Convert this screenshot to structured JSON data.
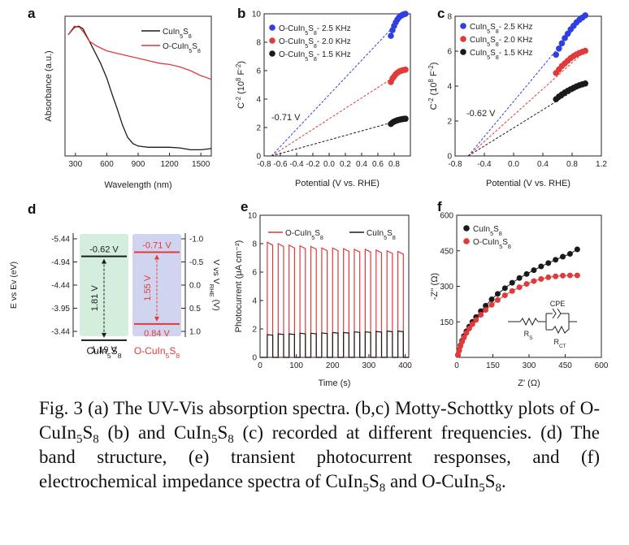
{
  "caption": {
    "p1": "Fig. 3 (a) The UV-Vis absorption spectra. (b,c) Motty-Schottky plots of O-CuIn",
    "p2": "S",
    "p3": " (b) and CuIn",
    "p4": "S",
    "p5": " (c) recorded at different frequencies. (d) The band structure, (e) transient photocurrent responses, and (f) electrochemical impedance spectra of CuIn",
    "p6": "S",
    "p7": " and O-CuIn",
    "p8": "S",
    "p9": ".",
    "sub5": "5",
    "sub8": "8"
  },
  "colors": {
    "red": "#e03a3a",
    "black": "#1a1a1a",
    "blue": "#2f3fe0",
    "green_box": "#d4eedd",
    "purple_box": "#d0d4ee"
  },
  "chart_data": [
    {
      "panel": "a",
      "type": "line",
      "xlabel": "Wavelength (nm)",
      "ylabel": "Absorbance (a.u.)",
      "xlim": [
        200,
        1600
      ],
      "xticks": [
        "300",
        "600",
        "900",
        "1200",
        "1500"
      ],
      "series": [
        {
          "name": "CuIn5S8",
          "color": "#1a1a1a",
          "x": [
            230,
            290,
            330,
            370,
            420,
            480,
            540,
            600,
            650,
            700,
            750,
            800,
            850,
            900,
            950,
            1000,
            1100,
            1200,
            1300,
            1400,
            1500,
            1600
          ],
          "y": [
            0.93,
            0.99,
            1.0,
            0.98,
            0.9,
            0.8,
            0.7,
            0.58,
            0.45,
            0.33,
            0.2,
            0.1,
            0.05,
            0.03,
            0.025,
            0.02,
            0.02,
            0.02,
            0.015,
            0.0,
            0.0,
            0.01
          ]
        },
        {
          "name": "O-CuIn5S8",
          "color": "#e03a3a",
          "x": [
            230,
            290,
            340,
            380,
            430,
            500,
            600,
            700,
            800,
            900,
            1000,
            1100,
            1200,
            1300,
            1400,
            1500,
            1600
          ],
          "y": [
            0.93,
            1.0,
            0.99,
            0.95,
            0.88,
            0.84,
            0.8,
            0.78,
            0.76,
            0.74,
            0.72,
            0.7,
            0.69,
            0.67,
            0.64,
            0.6,
            0.57
          ]
        }
      ]
    },
    {
      "panel": "b",
      "type": "scatter",
      "xlabel": "Potential (V vs. RHE)",
      "ylabel": "C⁻² (10⁸ F⁻²)",
      "xlim": [
        -0.8,
        1.0
      ],
      "ylim": [
        0,
        10
      ],
      "xticks": [
        "-0.8",
        "-0.6",
        "-0.4",
        "-0.2",
        "0.0",
        "0.2",
        "0.4",
        "0.6",
        "0.8"
      ],
      "yticks": [
        "0",
        "2",
        "4",
        "6",
        "8",
        "10"
      ],
      "annotation": "-0.71 V",
      "intercept": -0.71,
      "series": [
        {
          "name": "O-CuIn5S8- 2.5 KHz",
          "color": "#2f3fe0",
          "x": [
            0.76,
            0.78,
            0.8,
            0.82,
            0.84,
            0.86,
            0.88,
            0.9,
            0.92,
            0.94
          ],
          "y": [
            8.45,
            8.85,
            9.15,
            9.4,
            9.6,
            9.75,
            9.85,
            9.92,
            9.97,
            10.0
          ]
        },
        {
          "name": "O-CuIn5S8- 2.0 KHz",
          "color": "#e03a3a",
          "x": [
            0.76,
            0.78,
            0.8,
            0.82,
            0.84,
            0.86,
            0.88,
            0.9,
            0.92,
            0.94
          ],
          "y": [
            5.2,
            5.45,
            5.6,
            5.75,
            5.85,
            5.93,
            5.98,
            6.02,
            6.05,
            6.07
          ]
        },
        {
          "name": "O-CuIn5S8- 1.5 KHz",
          "color": "#1a1a1a",
          "x": [
            0.76,
            0.78,
            0.8,
            0.82,
            0.84,
            0.86,
            0.88,
            0.9,
            0.92,
            0.94
          ],
          "y": [
            2.25,
            2.35,
            2.42,
            2.47,
            2.51,
            2.54,
            2.57,
            2.59,
            2.61,
            2.62
          ]
        }
      ]
    },
    {
      "panel": "c",
      "type": "scatter",
      "xlabel": "Potential (V vs. RHE)",
      "ylabel": "C⁻² (10⁸ F⁻²)",
      "xlim": [
        -0.8,
        1.2
      ],
      "ylim": [
        0,
        8
      ],
      "xticks": [
        "-0.8",
        "-0.4",
        "0.0",
        "0.4",
        "0.8",
        "1.2"
      ],
      "yticks": [
        "0",
        "2",
        "4",
        "6",
        "8"
      ],
      "annotation": "-0.62 V",
      "intercept": -0.62,
      "series": [
        {
          "name": "CuIn5S8- 2.5 KHz",
          "color": "#2f3fe0",
          "x": [
            0.58,
            0.62,
            0.66,
            0.7,
            0.74,
            0.78,
            0.82,
            0.86,
            0.9,
            0.94,
            0.98
          ],
          "y": [
            5.8,
            6.15,
            6.45,
            6.75,
            7.0,
            7.25,
            7.45,
            7.65,
            7.8,
            7.92,
            8.05
          ]
        },
        {
          "name": "CuIn5S8- 2.0 KHz",
          "color": "#e03a3a",
          "x": [
            0.58,
            0.62,
            0.66,
            0.7,
            0.74,
            0.78,
            0.82,
            0.86,
            0.9,
            0.94,
            0.98
          ],
          "y": [
            4.75,
            4.95,
            5.15,
            5.3,
            5.45,
            5.6,
            5.72,
            5.82,
            5.9,
            5.96,
            6.02
          ]
        },
        {
          "name": "CuIn5S8- 1.5 KHz",
          "color": "#1a1a1a",
          "x": [
            0.58,
            0.62,
            0.66,
            0.7,
            0.74,
            0.78,
            0.82,
            0.86,
            0.9,
            0.94,
            0.98
          ],
          "y": [
            3.25,
            3.4,
            3.52,
            3.63,
            3.73,
            3.82,
            3.9,
            3.98,
            4.05,
            4.1,
            4.15
          ]
        }
      ]
    },
    {
      "panel": "d",
      "type": "diagram",
      "left_axis_label": "E vs Ev (eV)",
      "right_axis_label": "V vs V",
      "right_axis_sub": "RHE",
      "right_axis_suffix": " (V)",
      "left_ticks": [
        "-5.44",
        "-4.94",
        "-4.44",
        "-3.95",
        "-3.44"
      ],
      "right_ticks": [
        "-1.0",
        "-0.5",
        "0.0",
        "0.5",
        "1.0"
      ],
      "bands": [
        {
          "cb": "-0.62 V",
          "vb": "1.19 V",
          "gap": "1.81 V",
          "cb_value": -0.62,
          "vb_value": 1.19,
          "name_main": "CuIn",
          "name_s": "S",
          "sub1": "5",
          "sub2": "8"
        },
        {
          "cb": "-0.71 V",
          "vb": "0.84 V",
          "gap": "1.55 V",
          "cb_value": -0.71,
          "vb_value": 0.84,
          "name_main": "O-CuIn",
          "name_s": "S",
          "sub1": "5",
          "sub2": "8"
        }
      ]
    },
    {
      "panel": "e",
      "type": "line",
      "xlabel": "Time (s)",
      "ylabel": "Photocurrent (μA cm⁻²)",
      "xlim": [
        0,
        410
      ],
      "ylim": [
        0,
        10
      ],
      "xticks": [
        "0",
        "100",
        "200",
        "300",
        "400"
      ],
      "yticks": [
        "0",
        "2",
        "4",
        "6",
        "8",
        "10"
      ],
      "pulses_on_start": [
        20,
        50,
        80,
        110,
        140,
        170,
        200,
        230,
        260,
        290,
        320,
        350,
        380
      ],
      "pulse_width": 15,
      "series": [
        {
          "name": "O-CuIn5S8",
          "color": "#e03a3a",
          "peaks": [
            8.1,
            8.0,
            7.9,
            7.85,
            7.8,
            7.7,
            7.7,
            7.65,
            7.6,
            7.6,
            7.55,
            7.5,
            7.45
          ]
        },
        {
          "name": "CuIn5S8",
          "color": "#1a1a1a",
          "peaks": [
            1.6,
            1.65,
            1.65,
            1.7,
            1.7,
            1.72,
            1.75,
            1.75,
            1.8,
            1.8,
            1.82,
            1.85,
            1.85
          ]
        }
      ]
    },
    {
      "panel": "f",
      "type": "scatter",
      "xlabel": "Z' (Ω)",
      "ylabel": "-Z'' (Ω)",
      "xlim": [
        0,
        600
      ],
      "ylim": [
        0,
        600
      ],
      "xticks": [
        "0",
        "150",
        "300",
        "450",
        "600"
      ],
      "yticks": [
        "150",
        "300",
        "450",
        "600"
      ],
      "circuit": {
        "r_s": "R",
        "r_s_sub": "S",
        "cpe": "CPE",
        "r_ct": "R",
        "r_ct_sub": "CT"
      },
      "series": [
        {
          "name": "CuIn5S8",
          "color": "#1a1a1a",
          "x": [
            5,
            10,
            15,
            22,
            30,
            40,
            52,
            65,
            80,
            100,
            120,
            145,
            170,
            200,
            230,
            260,
            290,
            320,
            350,
            380,
            410,
            440,
            470,
            500
          ],
          "y": [
            10,
            30,
            50,
            70,
            90,
            110,
            130,
            150,
            170,
            195,
            218,
            245,
            268,
            292,
            315,
            335,
            352,
            368,
            384,
            398,
            412,
            425,
            437,
            456
          ]
        },
        {
          "name": "O-CuIn5S8",
          "color": "#e03a3a",
          "x": [
            5,
            10,
            15,
            22,
            30,
            40,
            52,
            65,
            80,
            100,
            120,
            145,
            170,
            200,
            230,
            260,
            290,
            320,
            350,
            380,
            410,
            440,
            470,
            500
          ],
          "y": [
            10,
            28,
            47,
            66,
            84,
            103,
            122,
            140,
            158,
            180,
            200,
            222,
            242,
            262,
            280,
            296,
            310,
            322,
            331,
            338,
            342,
            345,
            346,
            346
          ]
        }
      ]
    }
  ],
  "panel_labels": [
    "a",
    "b",
    "c",
    "d",
    "e",
    "f"
  ],
  "legend": {
    "a": [
      {
        "main": "CuIn",
        "s1": "5",
        "mid": "S",
        "s2": "8",
        "tail": ""
      },
      {
        "main": "O-CuIn",
        "s1": "5",
        "mid": "S",
        "s2": "8",
        "tail": ""
      }
    ],
    "b": [
      {
        "main": "O-CuIn",
        "s1": "5",
        "mid": "S",
        "s2": "8",
        "tail": "- 2.5 KHz"
      },
      {
        "main": "O-CuIn",
        "s1": "5",
        "mid": "S",
        "s2": "8",
        "tail": "- 2.0 KHz"
      },
      {
        "main": "O-CuIn",
        "s1": "5",
        "mid": "S",
        "s2": "8",
        "tail": "- 1.5 KHz"
      }
    ],
    "c": [
      {
        "main": "CuIn",
        "s1": "5",
        "mid": "S",
        "s2": "8",
        "tail": "- 2.5 KHz"
      },
      {
        "main": "CuIn",
        "s1": "5",
        "mid": "S",
        "s2": "8",
        "tail": "- 2.0 KHz"
      },
      {
        "main": "CuIn",
        "s1": "5",
        "mid": "S",
        "s2": "8",
        "tail": "- 1.5 KHz"
      }
    ],
    "e": [
      {
        "main": "O-CuIn",
        "s1": "5",
        "mid": "S",
        "s2": "8",
        "tail": ""
      },
      {
        "main": "CuIn",
        "s1": "5",
        "mid": "S",
        "s2": "8",
        "tail": ""
      }
    ],
    "f": [
      {
        "main": "CuIn",
        "s1": "5",
        "mid": "S",
        "s2": "8",
        "tail": ""
      },
      {
        "main": "O-CuIn",
        "s1": "5",
        "mid": "S",
        "s2": "8",
        "tail": ""
      }
    ]
  }
}
